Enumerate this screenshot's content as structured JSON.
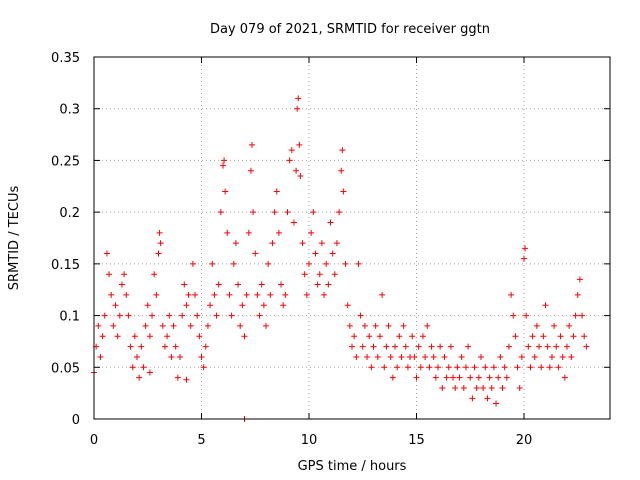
{
  "chart_data": {
    "type": "scatter",
    "title": "Day 079 of 2021, SRMTID for receiver ggtn",
    "xlabel": "GPS time / hours",
    "ylabel": "SRMTID / TECUs",
    "xlim": [
      0,
      24
    ],
    "ylim": [
      0,
      0.35
    ],
    "x_ticks": [
      0,
      5,
      10,
      15,
      20
    ],
    "y_ticks": [
      0,
      0.05,
      0.1,
      0.15,
      0.2,
      0.25,
      0.3,
      0.35
    ],
    "x_tick_labels": [
      "0",
      "5",
      "10",
      "15",
      "20"
    ],
    "y_tick_labels": [
      "0",
      "0.05",
      "0.1",
      "0.15",
      "0.2",
      "0.25",
      "0.3",
      "0.35"
    ],
    "grid": true,
    "marker": "+",
    "color": "#ff0000",
    "series": [
      {
        "name": "SRMTID",
        "points": [
          [
            0.0,
            0.045
          ],
          [
            0.1,
            0.07
          ],
          [
            0.2,
            0.09
          ],
          [
            0.3,
            0.06
          ],
          [
            0.4,
            0.08
          ],
          [
            0.5,
            0.1
          ],
          [
            0.6,
            0.16
          ],
          [
            0.7,
            0.14
          ],
          [
            0.8,
            0.12
          ],
          [
            0.9,
            0.09
          ],
          [
            1.0,
            0.11
          ],
          [
            1.1,
            0.08
          ],
          [
            1.2,
            0.1
          ],
          [
            1.3,
            0.13
          ],
          [
            1.4,
            0.14
          ],
          [
            1.5,
            0.12
          ],
          [
            1.6,
            0.1
          ],
          [
            1.7,
            0.07
          ],
          [
            1.8,
            0.05
          ],
          [
            1.9,
            0.08
          ],
          [
            2.0,
            0.06
          ],
          [
            2.1,
            0.04
          ],
          [
            2.2,
            0.07
          ],
          [
            2.3,
            0.05
          ],
          [
            2.4,
            0.09
          ],
          [
            2.5,
            0.11
          ],
          [
            2.6,
            0.08
          ],
          [
            2.7,
            0.1
          ],
          [
            2.8,
            0.14
          ],
          [
            2.9,
            0.12
          ],
          [
            3.0,
            0.16
          ],
          [
            3.05,
            0.18
          ],
          [
            3.1,
            0.17
          ],
          [
            3.2,
            0.09
          ],
          [
            3.3,
            0.07
          ],
          [
            3.4,
            0.08
          ],
          [
            3.5,
            0.1
          ],
          [
            3.6,
            0.06
          ],
          [
            3.7,
            0.09
          ],
          [
            3.8,
            0.07
          ],
          [
            3.9,
            0.04
          ],
          [
            4.0,
            0.06
          ],
          [
            4.1,
            0.1
          ],
          [
            4.2,
            0.13
          ],
          [
            4.3,
            0.11
          ],
          [
            4.4,
            0.12
          ],
          [
            4.5,
            0.09
          ],
          [
            4.6,
            0.15
          ],
          [
            4.7,
            0.12
          ],
          [
            4.8,
            0.1
          ],
          [
            4.9,
            0.08
          ],
          [
            5.0,
            0.06
          ],
          [
            5.1,
            0.05
          ],
          [
            5.2,
            0.07
          ],
          [
            5.3,
            0.09
          ],
          [
            5.4,
            0.11
          ],
          [
            5.5,
            0.15
          ],
          [
            5.6,
            0.12
          ],
          [
            5.7,
            0.1
          ],
          [
            5.8,
            0.13
          ],
          [
            5.9,
            0.2
          ],
          [
            6.0,
            0.245
          ],
          [
            6.05,
            0.25
          ],
          [
            6.1,
            0.22
          ],
          [
            6.2,
            0.18
          ],
          [
            6.3,
            0.12
          ],
          [
            6.4,
            0.1
          ],
          [
            6.5,
            0.15
          ],
          [
            6.6,
            0.17
          ],
          [
            6.7,
            0.13
          ],
          [
            6.8,
            0.09
          ],
          [
            6.9,
            0.11
          ],
          [
            7.0,
            0.08
          ],
          [
            7.1,
            0.12
          ],
          [
            7.2,
            0.18
          ],
          [
            7.3,
            0.24
          ],
          [
            7.35,
            0.265
          ],
          [
            7.4,
            0.2
          ],
          [
            7.5,
            0.16
          ],
          [
            7.6,
            0.12
          ],
          [
            7.7,
            0.1
          ],
          [
            7.8,
            0.13
          ],
          [
            7.9,
            0.11
          ],
          [
            8.0,
            0.09
          ],
          [
            8.1,
            0.15
          ],
          [
            8.2,
            0.12
          ],
          [
            8.3,
            0.17
          ],
          [
            8.4,
            0.2
          ],
          [
            8.5,
            0.22
          ],
          [
            8.6,
            0.18
          ],
          [
            8.7,
            0.13
          ],
          [
            8.8,
            0.11
          ],
          [
            8.9,
            0.12
          ],
          [
            9.0,
            0.2
          ],
          [
            9.1,
            0.25
          ],
          [
            9.2,
            0.26
          ],
          [
            9.3,
            0.19
          ],
          [
            9.4,
            0.24
          ],
          [
            9.45,
            0.3
          ],
          [
            9.5,
            0.31
          ],
          [
            9.55,
            0.265
          ],
          [
            9.6,
            0.235
          ],
          [
            9.7,
            0.17
          ],
          [
            9.8,
            0.14
          ],
          [
            9.9,
            0.12
          ],
          [
            10.0,
            0.15
          ],
          [
            10.1,
            0.18
          ],
          [
            10.2,
            0.2
          ],
          [
            10.3,
            0.16
          ],
          [
            10.4,
            0.13
          ],
          [
            10.5,
            0.14
          ],
          [
            10.6,
            0.17
          ],
          [
            10.7,
            0.12
          ],
          [
            10.8,
            0.15
          ],
          [
            10.9,
            0.13
          ],
          [
            11.0,
            0.19
          ],
          [
            11.1,
            0.16
          ],
          [
            11.2,
            0.14
          ],
          [
            11.3,
            0.17
          ],
          [
            11.4,
            0.2
          ],
          [
            11.5,
            0.24
          ],
          [
            11.55,
            0.26
          ],
          [
            11.6,
            0.22
          ],
          [
            11.7,
            0.15
          ],
          [
            11.8,
            0.11
          ],
          [
            11.9,
            0.09
          ],
          [
            12.0,
            0.07
          ],
          [
            12.1,
            0.08
          ],
          [
            12.2,
            0.06
          ],
          [
            12.3,
            0.15
          ],
          [
            12.4,
            0.1
          ],
          [
            12.5,
            0.07
          ],
          [
            12.6,
            0.09
          ],
          [
            12.7,
            0.06
          ],
          [
            12.8,
            0.08
          ],
          [
            12.9,
            0.05
          ],
          [
            13.0,
            0.07
          ],
          [
            13.1,
            0.09
          ],
          [
            13.2,
            0.06
          ],
          [
            13.3,
            0.08
          ],
          [
            13.4,
            0.12
          ],
          [
            13.5,
            0.05
          ],
          [
            13.6,
            0.07
          ],
          [
            13.7,
            0.09
          ],
          [
            13.8,
            0.06
          ],
          [
            13.9,
            0.04
          ],
          [
            14.0,
            0.07
          ],
          [
            14.1,
            0.05
          ],
          [
            14.2,
            0.08
          ],
          [
            14.3,
            0.06
          ],
          [
            14.4,
            0.09
          ],
          [
            14.5,
            0.07
          ],
          [
            14.6,
            0.05
          ],
          [
            14.7,
            0.06
          ],
          [
            14.8,
            0.08
          ],
          [
            14.9,
            0.06
          ],
          [
            15.0,
            0.04
          ],
          [
            15.1,
            0.07
          ],
          [
            15.2,
            0.05
          ],
          [
            15.3,
            0.08
          ],
          [
            15.4,
            0.06
          ],
          [
            15.5,
            0.09
          ],
          [
            15.6,
            0.05
          ],
          [
            15.7,
            0.07
          ],
          [
            15.8,
            0.06
          ],
          [
            15.9,
            0.04
          ],
          [
            16.0,
            0.05
          ],
          [
            16.1,
            0.07
          ],
          [
            16.2,
            0.03
          ],
          [
            16.3,
            0.06
          ],
          [
            16.4,
            0.04
          ],
          [
            16.5,
            0.05
          ],
          [
            16.6,
            0.07
          ],
          [
            16.7,
            0.04
          ],
          [
            16.8,
            0.03
          ],
          [
            16.9,
            0.05
          ],
          [
            17.0,
            0.04
          ],
          [
            17.1,
            0.06
          ],
          [
            17.2,
            0.03
          ],
          [
            17.3,
            0.05
          ],
          [
            17.4,
            0.07
          ],
          [
            17.5,
            0.04
          ],
          [
            17.6,
            0.02
          ],
          [
            17.7,
            0.05
          ],
          [
            17.8,
            0.03
          ],
          [
            17.9,
            0.04
          ],
          [
            18.0,
            0.06
          ],
          [
            18.1,
            0.03
          ],
          [
            18.2,
            0.05
          ],
          [
            18.3,
            0.02
          ],
          [
            18.4,
            0.04
          ],
          [
            18.5,
            0.03
          ],
          [
            18.6,
            0.05
          ],
          [
            18.7,
            0.015
          ],
          [
            18.8,
            0.04
          ],
          [
            18.9,
            0.06
          ],
          [
            19.0,
            0.03
          ],
          [
            19.1,
            0.05
          ],
          [
            19.2,
            0.04
          ],
          [
            19.3,
            0.07
          ],
          [
            19.4,
            0.12
          ],
          [
            19.5,
            0.1
          ],
          [
            19.6,
            0.08
          ],
          [
            19.7,
            0.05
          ],
          [
            19.8,
            0.03
          ],
          [
            19.9,
            0.06
          ],
          [
            20.0,
            0.155
          ],
          [
            20.05,
            0.165
          ],
          [
            20.1,
            0.1
          ],
          [
            20.2,
            0.07
          ],
          [
            20.3,
            0.05
          ],
          [
            20.4,
            0.08
          ],
          [
            20.5,
            0.06
          ],
          [
            20.6,
            0.09
          ],
          [
            20.7,
            0.07
          ],
          [
            20.8,
            0.05
          ],
          [
            20.9,
            0.08
          ],
          [
            21.0,
            0.11
          ],
          [
            21.1,
            0.07
          ],
          [
            21.2,
            0.05
          ],
          [
            21.3,
            0.06
          ],
          [
            21.4,
            0.09
          ],
          [
            21.5,
            0.07
          ],
          [
            21.6,
            0.05
          ],
          [
            21.7,
            0.08
          ],
          [
            21.8,
            0.06
          ],
          [
            21.9,
            0.04
          ],
          [
            22.0,
            0.07
          ],
          [
            22.1,
            0.09
          ],
          [
            22.2,
            0.06
          ],
          [
            22.3,
            0.08
          ],
          [
            22.4,
            0.1
          ],
          [
            22.5,
            0.12
          ],
          [
            22.6,
            0.135
          ],
          [
            22.7,
            0.1
          ],
          [
            22.8,
            0.08
          ],
          [
            22.9,
            0.07
          ],
          [
            7.0,
            0.0
          ],
          [
            2.6,
            0.045
          ],
          [
            4.3,
            0.038
          ]
        ]
      }
    ]
  }
}
